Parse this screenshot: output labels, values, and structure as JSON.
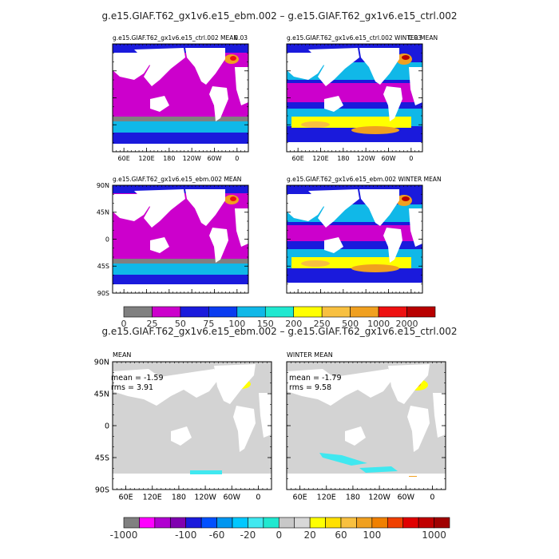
{
  "figure": {
    "title_top": "g.e15.GIAF.T62_gx1v6.e15_ebm.002 – g.e15.GIAF.T62_gx1v6.e15_ctrl.002",
    "title_diff": "g.e15.GIAF.T62_gx1v6.e15_ebm.002 – g.e15.GIAF.T62_gx1v6.e15_ctrl.002"
  },
  "colors": {
    "land": "#ffffff",
    "diff_land": "#d3d3d3",
    "frame": "#000000"
  },
  "chart_data": [
    {
      "type": "heatmap",
      "panel": "ctrl-mean",
      "title": "g.e15.GIAF.T62_gx1v6.e15_ctrl.002 MEAN",
      "corner_label": "0.03",
      "xticks": [
        "60E",
        "120E",
        "180",
        "120W",
        "60W",
        "0"
      ],
      "yticks": [],
      "xlim": [
        30,
        390
      ],
      "ylim": [
        -90,
        90
      ]
    },
    {
      "type": "heatmap",
      "panel": "ctrl-winter",
      "title": "g.e15.GIAF.T62_gx1v6.e15_ctrl.002 WINTER MEAN",
      "corner_label": "0.03",
      "xticks": [
        "60E",
        "120E",
        "180",
        "120W",
        "60W",
        "0"
      ],
      "yticks": [],
      "xlim": [
        30,
        390
      ],
      "ylim": [
        -90,
        90
      ]
    },
    {
      "type": "heatmap",
      "panel": "ebm-mean",
      "title": "g.e15.GIAF.T62_gx1v6.e15_ebm.002 MEAN",
      "xticks": [],
      "yticks": [
        "90N",
        "45N",
        "0",
        "45S",
        "90S"
      ],
      "xlim": [
        30,
        390
      ],
      "ylim": [
        -90,
        90
      ]
    },
    {
      "type": "heatmap",
      "panel": "ebm-winter",
      "title": "g.e15.GIAF.T62_gx1v6.e15_ebm.002 WINTER MEAN",
      "xticks": [],
      "yticks": [],
      "xlim": [
        30,
        390
      ],
      "ylim": [
        -90,
        90
      ]
    },
    {
      "type": "colorbar",
      "panel": "top-colorbar",
      "levels": [
        "0",
        "25",
        "50",
        "75",
        "100",
        "150",
        "200",
        "250",
        "500",
        "1000",
        "2000"
      ],
      "colors": [
        "#808080",
        "#cc00cc",
        "#1a1adc",
        "#0a3cf0",
        "#10b8e8",
        "#20e8d0",
        "#ffff00",
        "#f8c040",
        "#f0a020",
        "#ee1010",
        "#b80000"
      ]
    },
    {
      "type": "heatmap",
      "panel": "diff-mean",
      "title": "MEAN",
      "mean_label": "mean = -1.59",
      "rms_label": "rms = 3.91",
      "mean": -1.59,
      "rms": 3.91,
      "xticks": [
        "60E",
        "120E",
        "180",
        "120W",
        "60W",
        "0"
      ],
      "yticks": [
        "90N",
        "45N",
        "0",
        "45S",
        "90S"
      ],
      "xlim": [
        30,
        390
      ],
      "ylim": [
        -90,
        90
      ]
    },
    {
      "type": "heatmap",
      "panel": "diff-winter",
      "title": "WINTER MEAN",
      "mean_label": "mean = -1.79",
      "rms_label": "rms = 9.58",
      "mean": -1.79,
      "rms": 9.58,
      "xticks": [
        "60E",
        "120E",
        "180",
        "120W",
        "60W",
        "0"
      ],
      "yticks": [],
      "xlim": [
        30,
        390
      ],
      "ylim": [
        -90,
        90
      ]
    },
    {
      "type": "colorbar",
      "panel": "bottom-colorbar",
      "levels": [
        "-1000",
        "-100",
        "-60",
        "-20",
        "0",
        "20",
        "60",
        "100",
        "1000"
      ],
      "colors": [
        "#808080",
        "#ff00ff",
        "#b000d0",
        "#8000b0",
        "#1a1adc",
        "#0050ff",
        "#0096f0",
        "#00c8ff",
        "#40e8f0",
        "#20e8d0",
        "#c8c8c8",
        "#d8d8d8",
        "#ffff00",
        "#ffe000",
        "#f8c040",
        "#f0a020",
        "#f08000",
        "#f04000",
        "#e00000",
        "#c00000",
        "#a00000"
      ]
    }
  ]
}
